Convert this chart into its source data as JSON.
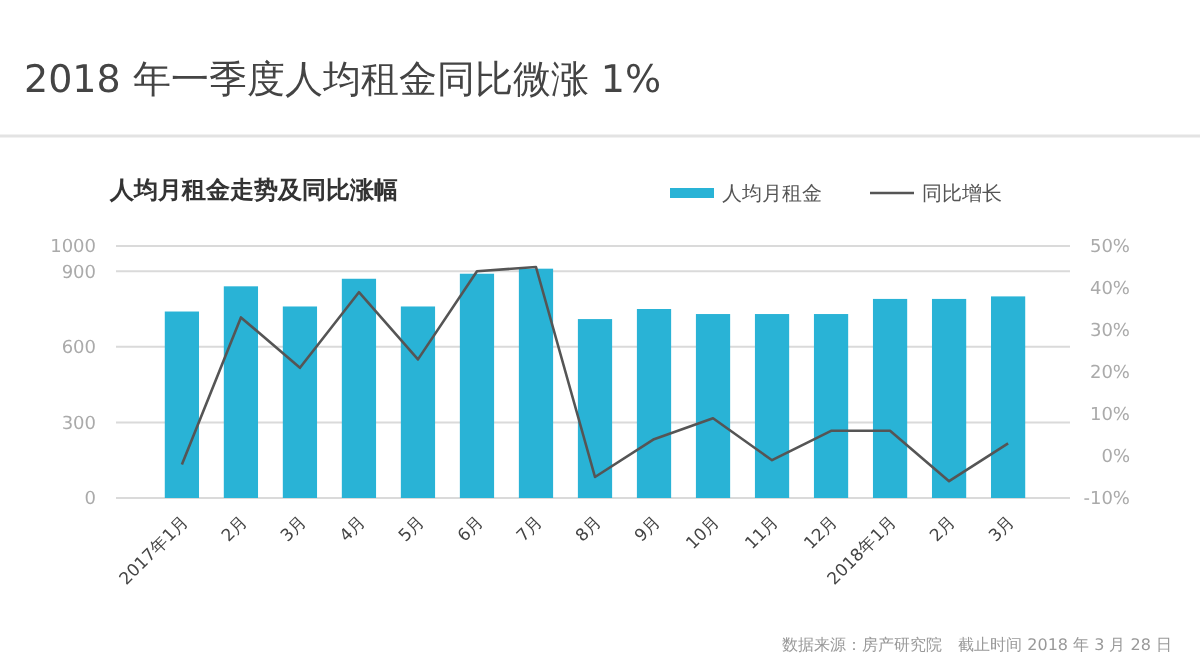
{
  "chart_data": {
    "type": "bar",
    "title": "2018 年一季度人均租金同比微涨 1%",
    "subtitle": "人均月租金走势及同比涨幅",
    "categories": [
      "2017年1月",
      "2月",
      "3月",
      "4月",
      "5月",
      "6月",
      "7月",
      "8月",
      "9月",
      "10月",
      "11月",
      "12月",
      "2018年1月",
      "2月",
      "3月"
    ],
    "series": [
      {
        "name": "人均月租金",
        "color": "#29b3d6",
        "values": [
          740,
          840,
          760,
          870,
          760,
          890,
          910,
          710,
          750,
          730,
          730,
          730,
          790,
          790,
          800
        ]
      },
      {
        "name": "同比增长",
        "type": "line",
        "axis": "y2",
        "color": "#555555",
        "values": [
          -2,
          33,
          21,
          39,
          23,
          44,
          45,
          -5,
          4,
          9,
          -1,
          6,
          6,
          -6,
          3
        ]
      }
    ],
    "ylim": [
      0,
      1000
    ],
    "yticks": [
      0,
      300,
      600,
      900,
      1000
    ],
    "y2lim": [
      -10,
      50
    ],
    "y2ticks": [
      {
        "value": -10,
        "label": "-10%"
      },
      {
        "value": 0,
        "label": "0%"
      },
      {
        "value": 10,
        "label": "10%"
      },
      {
        "value": 20,
        "label": "20%"
      },
      {
        "value": 30,
        "label": "30%"
      },
      {
        "value": 40,
        "label": "40%"
      },
      {
        "value": 50,
        "label": "50%"
      }
    ],
    "grid": "y",
    "legend": "top right",
    "annotations": [
      "数据来源：房产研究院　截止时间 2018 年 3 月 28 日"
    ]
  }
}
